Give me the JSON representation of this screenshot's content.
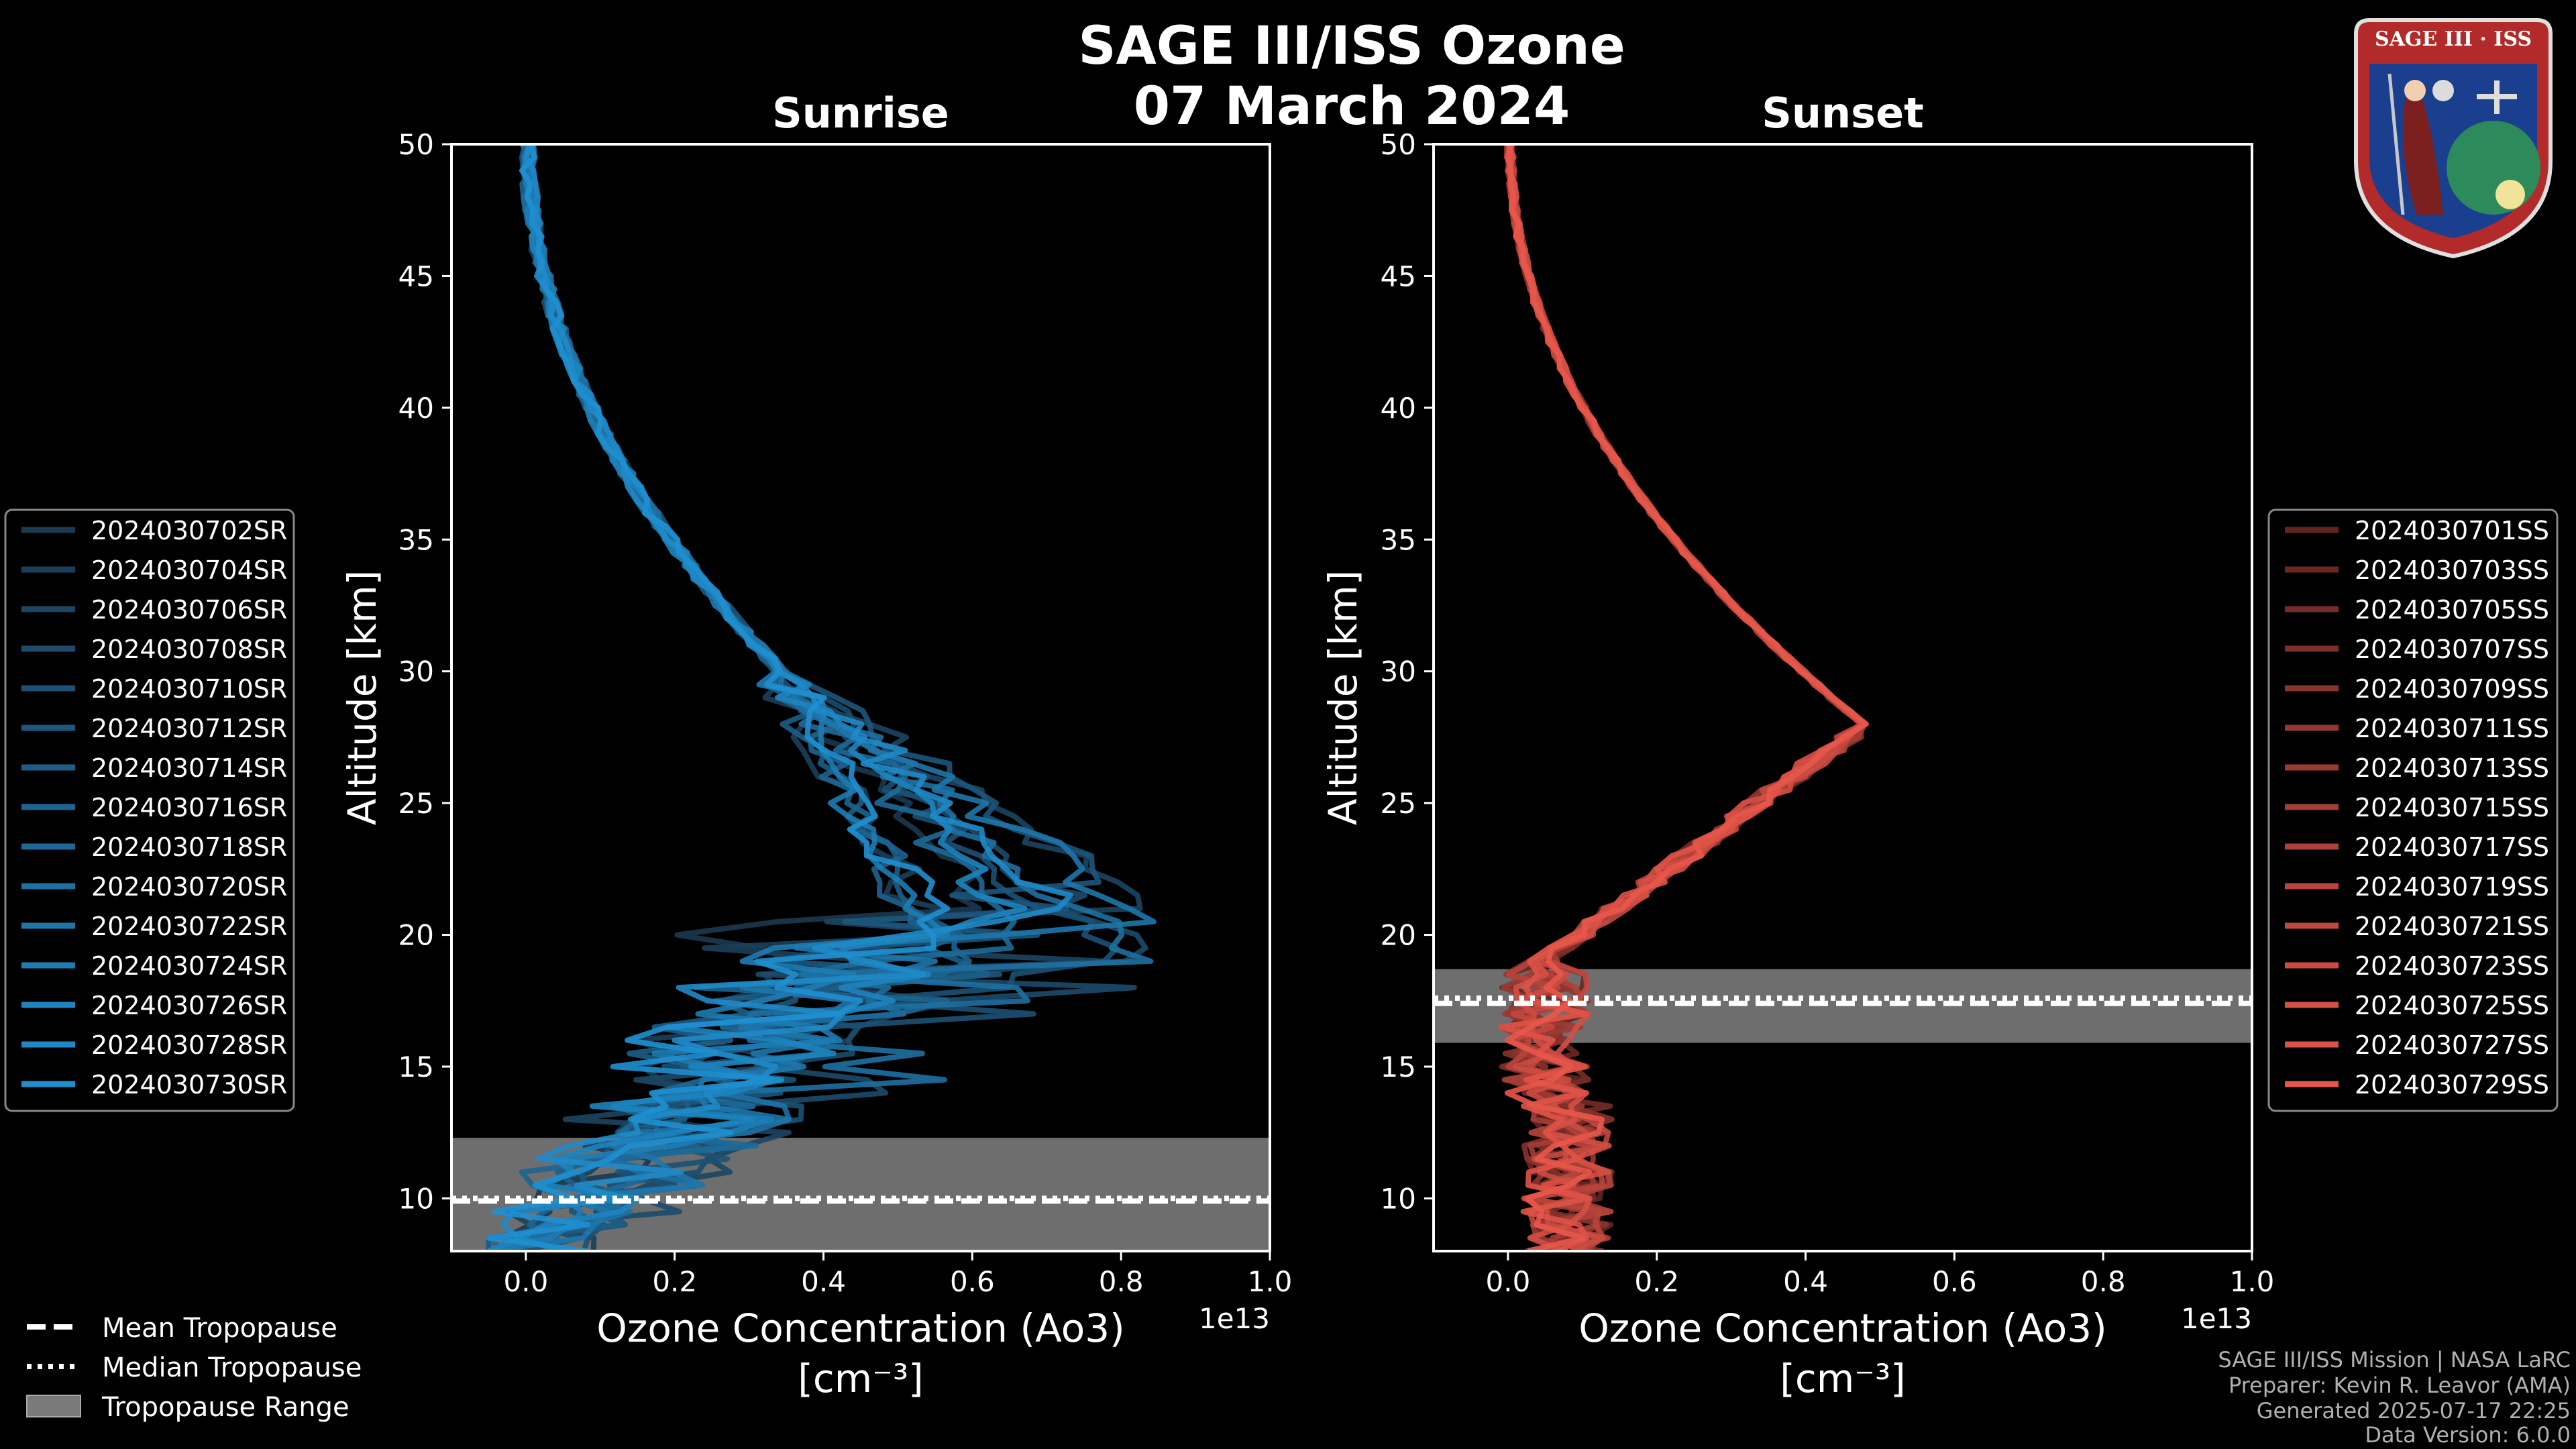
{
  "title_line1": "SAGE III/ISS Ozone",
  "title_line2": "07 March 2024",
  "logo_text": "SAGE III · ISS",
  "footer": {
    "line1": "SAGE III/ISS Mission | NASA LaRC",
    "line2": "Preparer: Kevin R. Leavor (AMA)",
    "line3": "Generated 2025-07-17 22:25",
    "line4": "Data Version: 6.0.0"
  },
  "tropo_legend": {
    "mean": "Mean Tropopause",
    "median": "Median Tropopause",
    "range": "Tropopause Range"
  },
  "colors": {
    "sunrise": "#1f8fd0",
    "sunset": "#e8564a",
    "tropo_fill": "#7a7a7a"
  },
  "chart_data": [
    {
      "type": "line",
      "title": "Sunrise",
      "xlabel": "Ozone Concentration (Ao3)",
      "xlabel_units": "[cm⁻³]",
      "ylabel": "Altitude [km]",
      "x_offset_label": "1e13",
      "xlim": [
        -0.1,
        1.0
      ],
      "ylim": [
        8,
        50
      ],
      "xticks": [
        "0.0",
        "0.2",
        "0.4",
        "0.6",
        "0.8",
        "1.0"
      ],
      "yticks": [
        "10",
        "15",
        "20",
        "25",
        "30",
        "35",
        "40",
        "45",
        "50"
      ],
      "tropopause": {
        "mean": 9.9,
        "median": 10.0,
        "range": [
          8,
          12.3
        ]
      },
      "legend": [
        "2024030702SR",
        "2024030704SR",
        "2024030706SR",
        "2024030708SR",
        "2024030710SR",
        "2024030712SR",
        "2024030714SR",
        "2024030716SR",
        "2024030718SR",
        "2024030720SR",
        "2024030722SR",
        "2024030724SR",
        "2024030726SR",
        "2024030728SR",
        "2024030730SR"
      ],
      "series_count": 15
    },
    {
      "type": "line",
      "title": "Sunset",
      "xlabel": "Ozone Concentration (Ao3)",
      "xlabel_units": "[cm⁻³]",
      "ylabel": "Altitude [km]",
      "x_offset_label": "1e13",
      "xlim": [
        -0.1,
        1.0
      ],
      "ylim": [
        8,
        50
      ],
      "xticks": [
        "0.0",
        "0.2",
        "0.4",
        "0.6",
        "0.8",
        "1.0"
      ],
      "yticks": [
        "10",
        "15",
        "20",
        "25",
        "30",
        "35",
        "40",
        "45",
        "50"
      ],
      "tropopause": {
        "mean": 17.4,
        "median": 17.6,
        "range": [
          15.9,
          18.7
        ]
      },
      "legend": [
        "2024030701SS",
        "2024030703SS",
        "2024030705SS",
        "2024030707SS",
        "2024030709SS",
        "2024030711SS",
        "2024030713SS",
        "2024030715SS",
        "2024030717SS",
        "2024030719SS",
        "2024030721SS",
        "2024030723SS",
        "2024030725SS",
        "2024030727SS",
        "2024030729SS"
      ],
      "series_count": 15
    }
  ]
}
